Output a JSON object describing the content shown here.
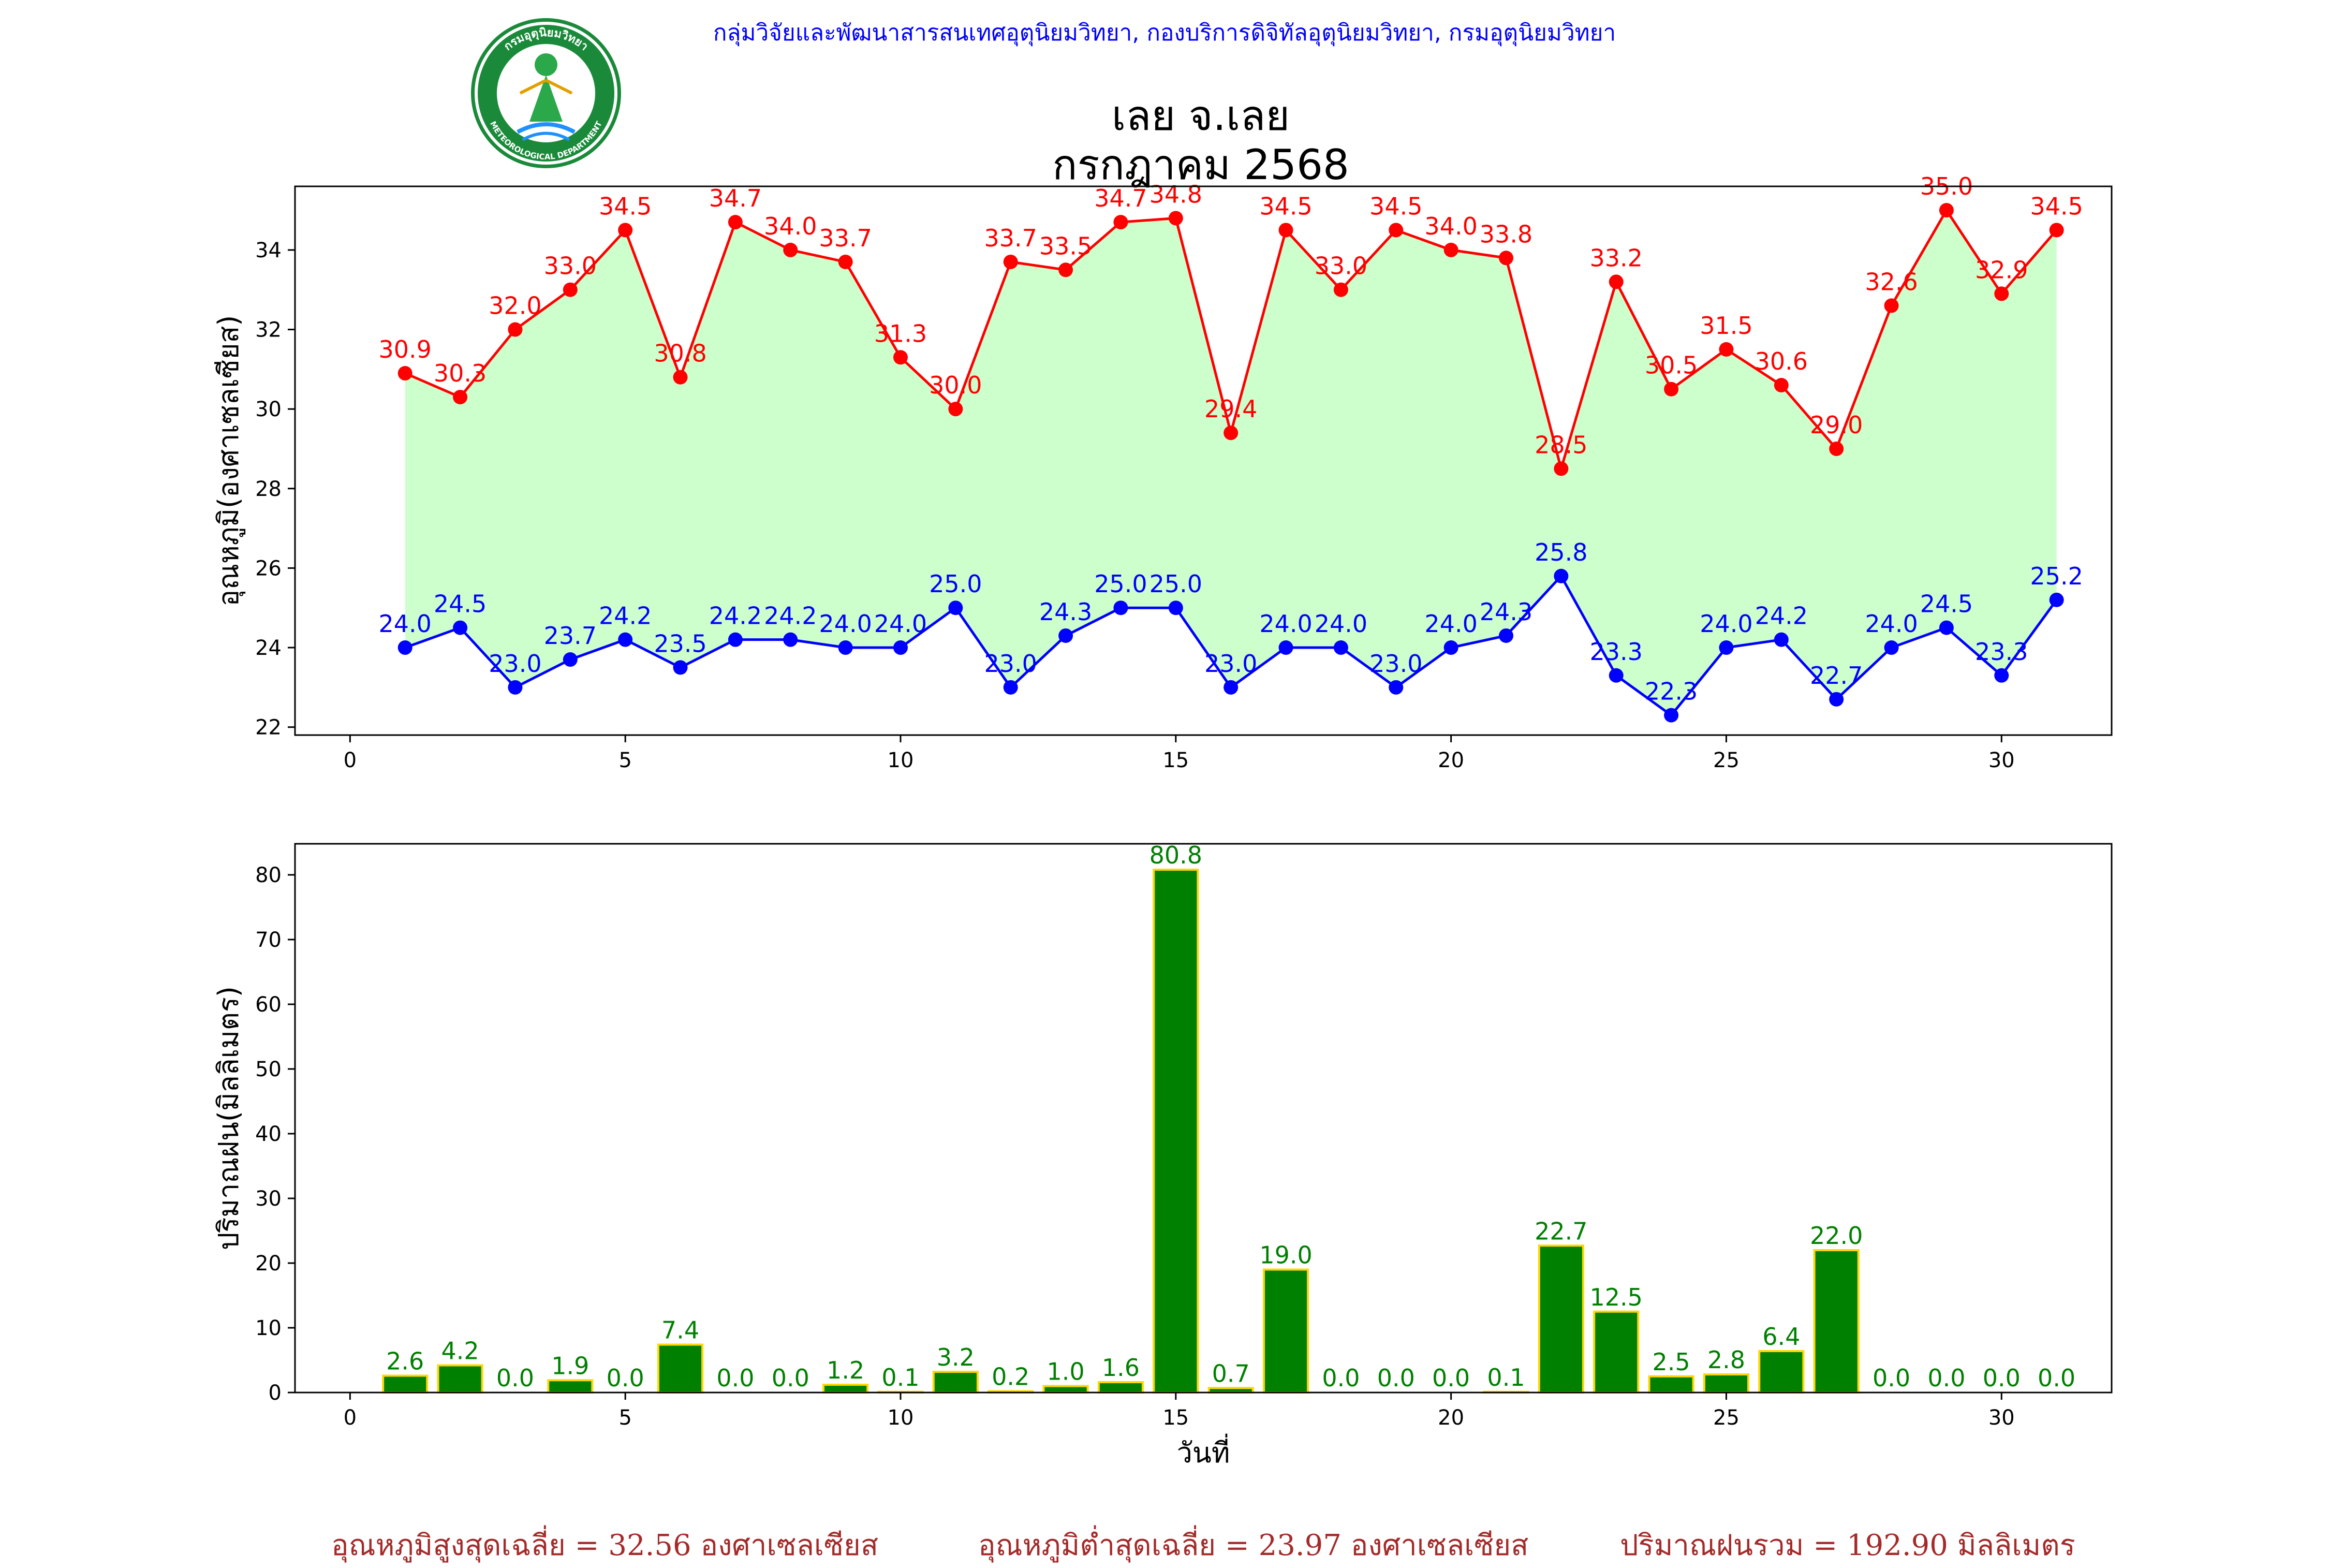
{
  "header": {
    "agency": "กลุ่มวิจัยและพัฒนาสารสนเทศอุตุนิยมวิทยา, กองบริการดิจิทัลอุตุนิยมวิทยา, กรมอุตุนิยมวิทยา",
    "station": "เลย จ.เลย",
    "period": "กรกฎาคม 2568",
    "logo_text_top": "กรมอุตุนิยมวิทยา",
    "logo_text_bottom": "METEOROLOGICAL DEPARTMENT"
  },
  "colors": {
    "max_temp": "#ff0000",
    "min_temp": "#0000ff",
    "fill": "#ccffcc",
    "rain_bar": "#008000",
    "rain_edge": "#ffd700",
    "footer": "#a52a2a",
    "header": "#0000ff"
  },
  "chart_data": [
    {
      "type": "line",
      "ylabel": "อุณหภูมิ(องศาเซลเซียส)",
      "xlim": [
        -1,
        32
      ],
      "ylim": [
        21.8,
        35.6
      ],
      "xticks": [
        0,
        5,
        10,
        15,
        20,
        25,
        30
      ],
      "yticks": [
        22,
        24,
        26,
        28,
        30,
        32,
        34
      ],
      "x": [
        1,
        2,
        3,
        4,
        5,
        6,
        7,
        8,
        9,
        10,
        11,
        12,
        13,
        14,
        15,
        16,
        17,
        18,
        19,
        20,
        21,
        22,
        23,
        24,
        25,
        26,
        27,
        28,
        29,
        30,
        31
      ],
      "series": [
        {
          "key": "max",
          "values": [
            30.9,
            30.3,
            32.0,
            33.0,
            34.5,
            30.8,
            34.7,
            34.0,
            33.7,
            31.3,
            30.0,
            33.7,
            33.5,
            34.7,
            34.8,
            29.4,
            34.5,
            33.0,
            34.5,
            34.0,
            33.8,
            28.5,
            33.2,
            30.5,
            31.5,
            30.6,
            29.0,
            32.6,
            35.0,
            32.9,
            34.5
          ]
        },
        {
          "key": "min",
          "values": [
            24.0,
            24.5,
            23.0,
            23.7,
            24.2,
            23.5,
            24.2,
            24.2,
            24.0,
            24.0,
            25.0,
            23.0,
            24.3,
            25.0,
            25.0,
            23.0,
            24.0,
            24.0,
            23.0,
            24.0,
            24.3,
            25.8,
            23.3,
            22.3,
            24.0,
            24.2,
            22.7,
            24.0,
            24.5,
            23.3,
            25.2
          ]
        }
      ]
    },
    {
      "type": "bar",
      "ylabel": "ปริมาณฝน(มิลลิเมตร)",
      "xlabel": "วันที่",
      "xlim": [
        -1,
        32
      ],
      "ylim": [
        0,
        84.8
      ],
      "xticks": [
        0,
        5,
        10,
        15,
        20,
        25,
        30
      ],
      "yticks": [
        0,
        10,
        20,
        30,
        40,
        50,
        60,
        70,
        80
      ],
      "x": [
        1,
        2,
        3,
        4,
        5,
        6,
        7,
        8,
        9,
        10,
        11,
        12,
        13,
        14,
        15,
        16,
        17,
        18,
        19,
        20,
        21,
        22,
        23,
        24,
        25,
        26,
        27,
        28,
        29,
        30,
        31
      ],
      "values": [
        2.6,
        4.2,
        0.0,
        1.9,
        0.0,
        7.4,
        0.0,
        0.0,
        1.2,
        0.1,
        3.2,
        0.2,
        1.0,
        1.6,
        80.8,
        0.7,
        19.0,
        0.0,
        0.0,
        0.0,
        0.1,
        22.7,
        12.5,
        2.5,
        2.8,
        6.4,
        22.0,
        0.0,
        0.0,
        0.0,
        0.0
      ]
    }
  ],
  "footer": {
    "avg_max": "อุณหภูมิสูงสุดเฉลี่ย = 32.56 องศาเซลเซียส",
    "avg_min": "อุณหภูมิต่ำสุดเฉลี่ย = 23.97 องศาเซลเซียส",
    "total_rain": "ปริมาณฝนรวม = 192.90 มิลลิเมตร"
  }
}
